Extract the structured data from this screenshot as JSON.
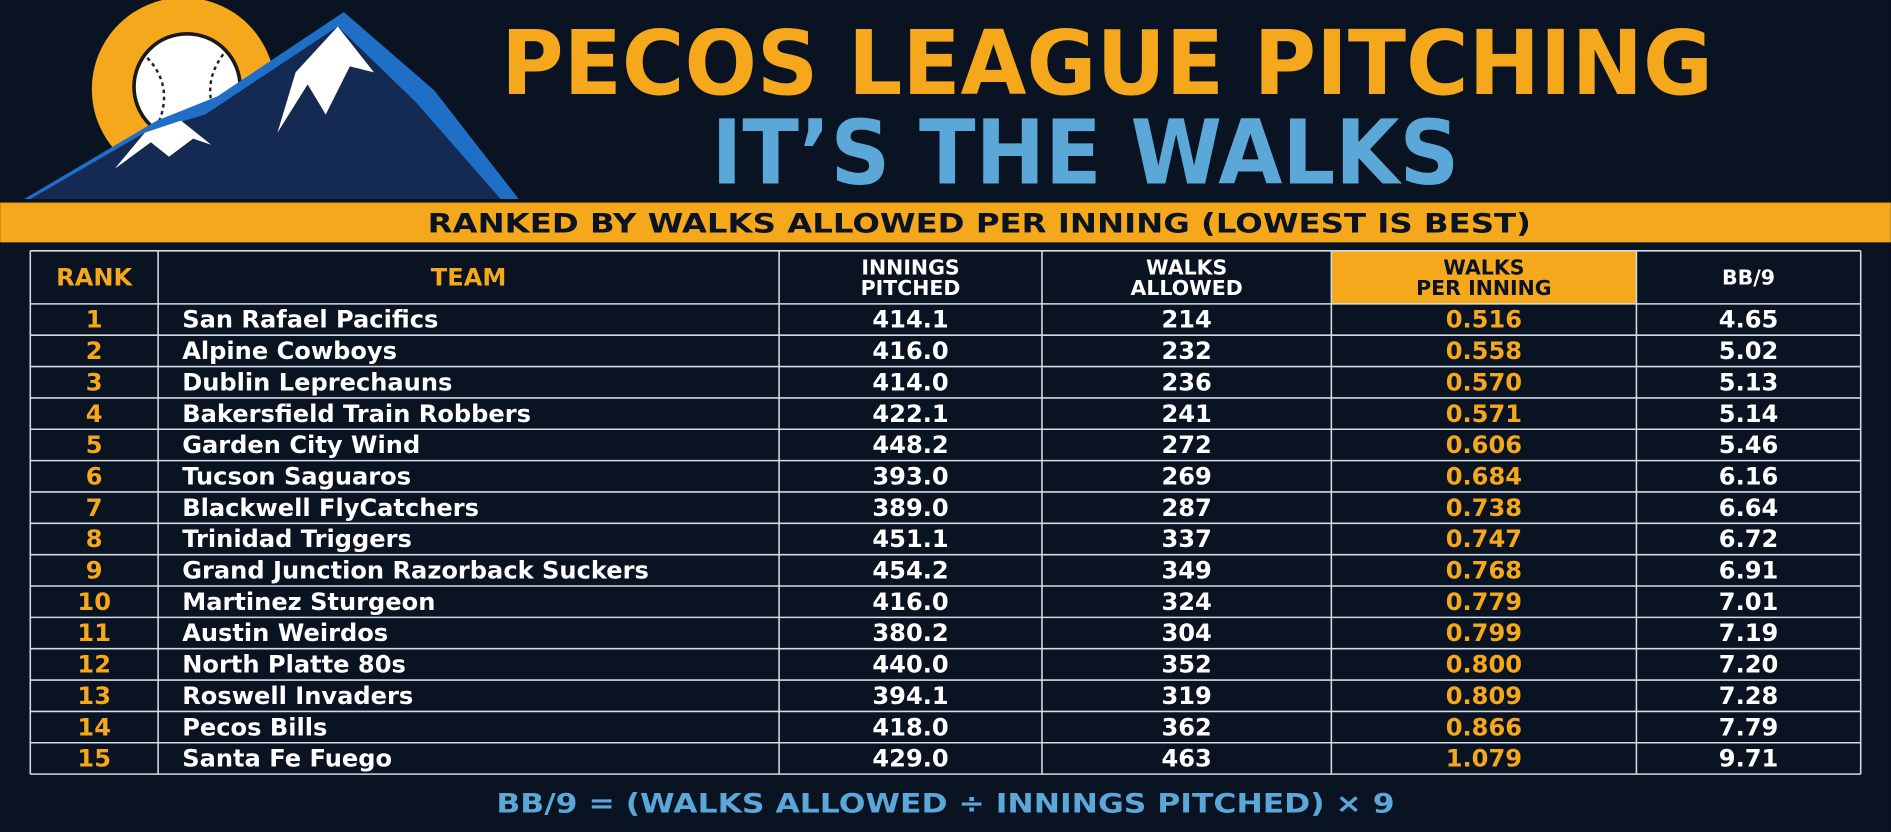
{
  "header": {
    "title": "PECOS LEAGUE PITCHING",
    "subtitle": "IT’S THE WALKS",
    "banner": "RANKED BY WALKS ALLOWED PER INNING (LOWEST IS BEST)"
  },
  "table": {
    "columns": [
      [
        "RANK"
      ],
      [
        "TEAM"
      ],
      [
        "INNINGS",
        "PITCHED"
      ],
      [
        "WALKS",
        "ALLOWED"
      ],
      [
        "WALKS",
        "PER INNING"
      ],
      [
        "BB/9"
      ]
    ],
    "rows": [
      [
        "1",
        "San Rafael Pacifics",
        "414.1",
        "214",
        "0.516",
        "4.65"
      ],
      [
        "2",
        "Alpine Cowboys",
        "416.0",
        "232",
        "0.558",
        "5.02"
      ],
      [
        "3",
        "Dublin Leprechauns",
        "414.0",
        "236",
        "0.570",
        "5.13"
      ],
      [
        "4",
        "Bakersfield Train Robbers",
        "422.1",
        "241",
        "0.571",
        "5.14"
      ],
      [
        "5",
        "Garden City Wind",
        "448.2",
        "272",
        "0.606",
        "5.46"
      ],
      [
        "6",
        "Tucson Saguaros",
        "393.0",
        "269",
        "0.684",
        "6.16"
      ],
      [
        "7",
        "Blackwell FlyCatchers",
        "389.0",
        "287",
        "0.738",
        "6.64"
      ],
      [
        "8",
        "Trinidad Triggers",
        "451.1",
        "337",
        "0.747",
        "6.72"
      ],
      [
        "9",
        "Grand Junction Razorback Suckers",
        "454.2",
        "349",
        "0.768",
        "6.91"
      ],
      [
        "10",
        "Martinez Sturgeon",
        "416.0",
        "324",
        "0.779",
        "7.01"
      ],
      [
        "11",
        "Austin Weirdos",
        "380.2",
        "304",
        "0.799",
        "7.19"
      ],
      [
        "12",
        "North Platte 80s",
        "440.0",
        "352",
        "0.800",
        "7.20"
      ],
      [
        "13",
        "Roswell Invaders",
        "394.1",
        "319",
        "0.809",
        "7.28"
      ],
      [
        "14",
        "Pecos Bills",
        "418.0",
        "362",
        "0.866",
        "7.79"
      ],
      [
        "15",
        "Santa Fe Fuego",
        "429.0",
        "463",
        "1.079",
        "9.71"
      ]
    ]
  },
  "footer": "BB/9 = (WALKS ALLOWED ÷ INNINGS PITCHED) × 9"
}
